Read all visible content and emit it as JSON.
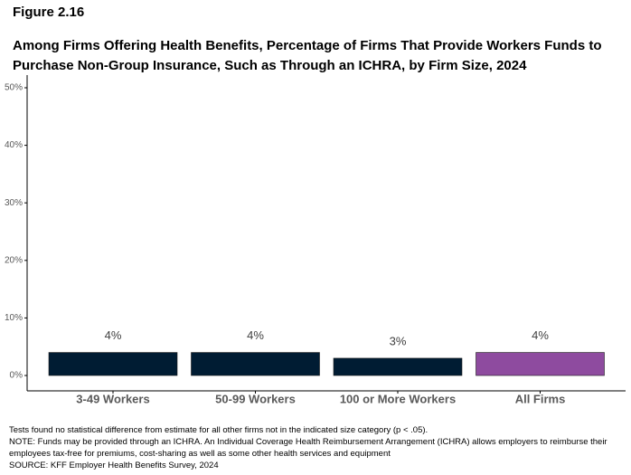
{
  "chart_data": {
    "type": "bar",
    "figure_label": "Figure 2.16",
    "title": "Among Firms Offering Health Benefits, Percentage of Firms That Provide Workers Funds to Purchase Non-Group Insurance, Such as Through an ICHRA, by Firm Size, 2024",
    "categories": [
      "3-49 Workers",
      "50-99 Workers",
      "100 or More Workers",
      "All Firms"
    ],
    "values": [
      4,
      4,
      3,
      4
    ],
    "value_labels": [
      "4%",
      "4%",
      "3%",
      "4%"
    ],
    "colors": [
      "#001c33",
      "#001c33",
      "#001c33",
      "#8e4b9f"
    ],
    "ylim": [
      -2.67,
      52.2
    ],
    "yticks": [
      {
        "value": 0,
        "label": "0%"
      },
      {
        "value": 10,
        "label": "10%"
      },
      {
        "value": 20,
        "label": "20%"
      },
      {
        "value": 30,
        "label": "30%"
      },
      {
        "value": 40,
        "label": "40%"
      },
      {
        "value": 50,
        "label": "50%"
      }
    ],
    "grid": false,
    "notes": [
      "Tests found no statistical difference from estimate for all other firms not in the indicated size category (p < .05).",
      "NOTE: Funds may be provided through an ICHRA. An Individual Coverage Health Reimbursement Arrangement (ICHRA) allows employers to reimburse their employees tax-free for premiums, cost-sharing as well as some other health services and equipment",
      "SOURCE: KFF Employer Health Benefits Survey, 2024"
    ]
  }
}
